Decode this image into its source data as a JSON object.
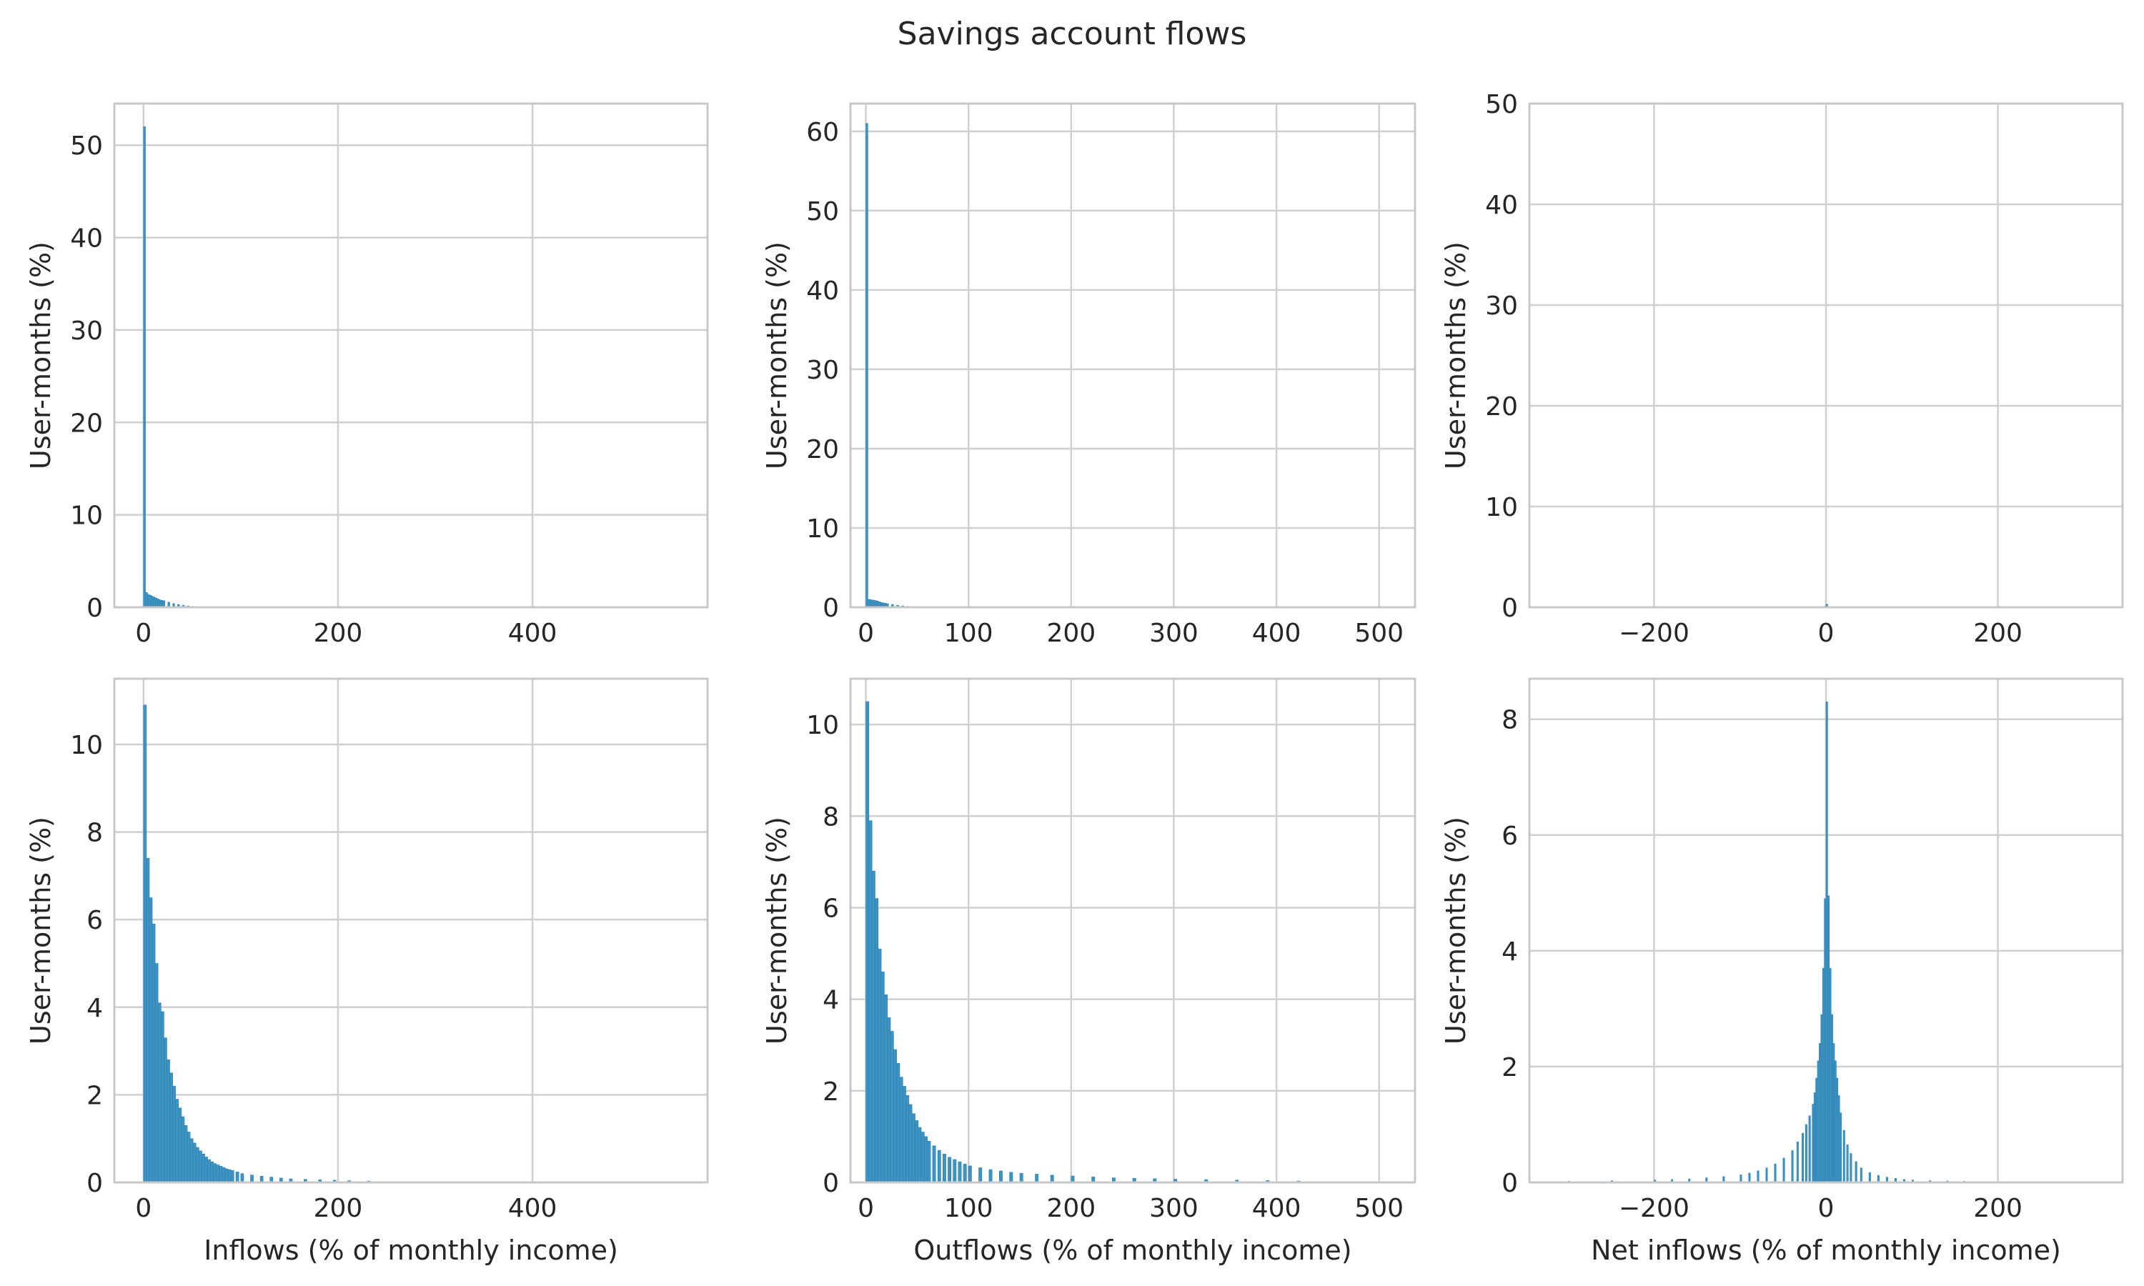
{
  "figure": {
    "title": "Savings account flows"
  },
  "style": {
    "bar_color": "#3d94c2",
    "bar_edge": "#2c7fb0",
    "grid_color": "#cfcfcf",
    "background": "#ffffff"
  },
  "chart_data": [
    {
      "type": "bar",
      "panel": "inflows-full",
      "title": "",
      "xlabel": "",
      "ylabel": "User-months (%)",
      "xlim": [
        -30,
        580
      ],
      "ylim": [
        0,
        54.5
      ],
      "xticks": [
        0,
        200,
        400
      ],
      "yticks": [
        0,
        10,
        20,
        30,
        40,
        50
      ],
      "grid": true,
      "bin_width": 2,
      "bin_left_edges": [
        0,
        2,
        4,
        6,
        8,
        10,
        12,
        14,
        16,
        18,
        20,
        25,
        30,
        35,
        40,
        45,
        50,
        55,
        60
      ],
      "values": [
        52.0,
        1.6,
        1.4,
        1.3,
        1.2,
        1.1,
        1.0,
        0.9,
        0.8,
        0.75,
        0.7,
        0.55,
        0.4,
        0.3,
        0.22,
        0.15,
        0.1,
        0.06,
        0.04
      ]
    },
    {
      "type": "bar",
      "panel": "outflows-full",
      "title": "",
      "xlabel": "",
      "ylabel": "User-months (%)",
      "xlim": [
        -15,
        535
      ],
      "ylim": [
        0,
        63.5
      ],
      "xticks": [
        0,
        100,
        200,
        300,
        400,
        500
      ],
      "yticks": [
        0,
        10,
        20,
        30,
        40,
        50,
        60
      ],
      "grid": true,
      "bin_width": 2,
      "bin_left_edges": [
        0,
        2,
        4,
        6,
        8,
        10,
        12,
        14,
        16,
        18,
        20,
        25,
        30,
        35,
        40,
        45
      ],
      "values": [
        61.0,
        1.0,
        0.95,
        0.9,
        0.85,
        0.8,
        0.7,
        0.6,
        0.55,
        0.5,
        0.45,
        0.35,
        0.25,
        0.18,
        0.12,
        0.07
      ]
    },
    {
      "type": "bar",
      "panel": "net-inflows-full",
      "title": "",
      "xlabel": "",
      "ylabel": "User-months (%)",
      "xlim": [
        -345,
        345
      ],
      "ylim": [
        0,
        50
      ],
      "xticks": [
        -200,
        0,
        200
      ],
      "yticks": [
        0,
        10,
        20,
        30,
        40,
        50
      ],
      "grid": true,
      "bin_width": 2,
      "bin_left_edges": [
        -4,
        -2,
        0,
        2
      ],
      "values": [
        0.05,
        0.1,
        0.3,
        0.08
      ]
    },
    {
      "type": "bar",
      "panel": "inflows-zoom",
      "title": "",
      "xlabel": "Inflows (% of monthly income)",
      "ylabel": "User-months (%)",
      "xlim": [
        -30,
        580
      ],
      "ylim": [
        0,
        11.5
      ],
      "xticks": [
        0,
        200,
        400
      ],
      "yticks": [
        0,
        2,
        4,
        6,
        8,
        10
      ],
      "grid": true,
      "bin_width": 3,
      "bin_left_edges": [
        0,
        3,
        6,
        9,
        12,
        15,
        18,
        21,
        24,
        27,
        30,
        33,
        36,
        39,
        42,
        45,
        48,
        51,
        54,
        57,
        60,
        63,
        66,
        69,
        72,
        75,
        78,
        81,
        84,
        87,
        90,
        95,
        100,
        110,
        120,
        130,
        140,
        150,
        165,
        180,
        195,
        210,
        230,
        250,
        270
      ],
      "values": [
        10.9,
        7.4,
        6.5,
        5.9,
        5.0,
        4.1,
        3.9,
        3.3,
        2.8,
        2.5,
        2.2,
        1.9,
        1.7,
        1.5,
        1.3,
        1.15,
        1.0,
        0.9,
        0.8,
        0.72,
        0.65,
        0.58,
        0.52,
        0.47,
        0.43,
        0.4,
        0.37,
        0.34,
        0.31,
        0.29,
        0.27,
        0.24,
        0.2,
        0.17,
        0.14,
        0.12,
        0.1,
        0.08,
        0.07,
        0.06,
        0.05,
        0.04,
        0.03,
        0.02,
        0.01
      ]
    },
    {
      "type": "bar",
      "panel": "outflows-zoom",
      "title": "",
      "xlabel": "Outflows (% of monthly income)",
      "ylabel": "User-months (%)",
      "xlim": [
        -15,
        535
      ],
      "ylim": [
        0,
        11
      ],
      "xticks": [
        0,
        100,
        200,
        300,
        400,
        500
      ],
      "yticks": [
        0,
        2,
        4,
        6,
        8,
        10
      ],
      "grid": true,
      "bin_width": 3,
      "bin_left_edges": [
        0,
        3,
        6,
        9,
        12,
        15,
        18,
        21,
        24,
        27,
        30,
        33,
        36,
        39,
        42,
        45,
        48,
        51,
        54,
        57,
        60,
        65,
        70,
        75,
        80,
        85,
        90,
        95,
        100,
        110,
        120,
        130,
        140,
        150,
        165,
        180,
        200,
        220,
        240,
        260,
        280,
        300,
        330,
        360,
        390,
        420
      ],
      "values": [
        10.5,
        7.9,
        6.8,
        6.2,
        5.1,
        4.6,
        4.1,
        3.6,
        3.3,
        2.9,
        2.6,
        2.3,
        2.1,
        1.9,
        1.7,
        1.5,
        1.35,
        1.2,
        1.1,
        1.0,
        0.9,
        0.8,
        0.7,
        0.62,
        0.55,
        0.5,
        0.45,
        0.4,
        0.36,
        0.32,
        0.28,
        0.25,
        0.22,
        0.2,
        0.18,
        0.16,
        0.14,
        0.12,
        0.1,
        0.09,
        0.08,
        0.07,
        0.06,
        0.05,
        0.04,
        0.03
      ]
    },
    {
      "type": "bar",
      "panel": "net-inflows-zoom",
      "title": "",
      "xlabel": "Net inflows (% of monthly income)",
      "ylabel": "User-months (%)",
      "xlim": [
        -345,
        345
      ],
      "ylim": [
        0,
        8.7
      ],
      "xticks": [
        -200,
        0,
        200
      ],
      "yticks": [
        0,
        2,
        4,
        6,
        8
      ],
      "grid": true,
      "bin_width": 2,
      "bin_left_edges": [
        -300,
        -250,
        -200,
        -180,
        -160,
        -140,
        -120,
        -100,
        -90,
        -80,
        -70,
        -60,
        -50,
        -40,
        -34,
        -28,
        -24,
        -20,
        -16,
        -14,
        -12,
        -10,
        -8,
        -6,
        -4,
        -2,
        0,
        2,
        4,
        6,
        8,
        10,
        12,
        14,
        16,
        20,
        24,
        28,
        34,
        40,
        50,
        60,
        70,
        80,
        90,
        100,
        120,
        140,
        160,
        180,
        200
      ],
      "values": [
        0.02,
        0.03,
        0.04,
        0.05,
        0.06,
        0.08,
        0.1,
        0.13,
        0.16,
        0.2,
        0.25,
        0.32,
        0.42,
        0.55,
        0.7,
        0.85,
        1.0,
        1.15,
        1.35,
        1.55,
        1.8,
        2.1,
        2.4,
        2.9,
        3.7,
        4.9,
        8.3,
        4.95,
        3.7,
        2.9,
        2.4,
        2.1,
        1.8,
        1.5,
        1.2,
        0.9,
        0.65,
        0.5,
        0.36,
        0.25,
        0.17,
        0.12,
        0.09,
        0.07,
        0.05,
        0.04,
        0.03,
        0.025,
        0.02,
        0.015,
        0.01
      ]
    }
  ]
}
